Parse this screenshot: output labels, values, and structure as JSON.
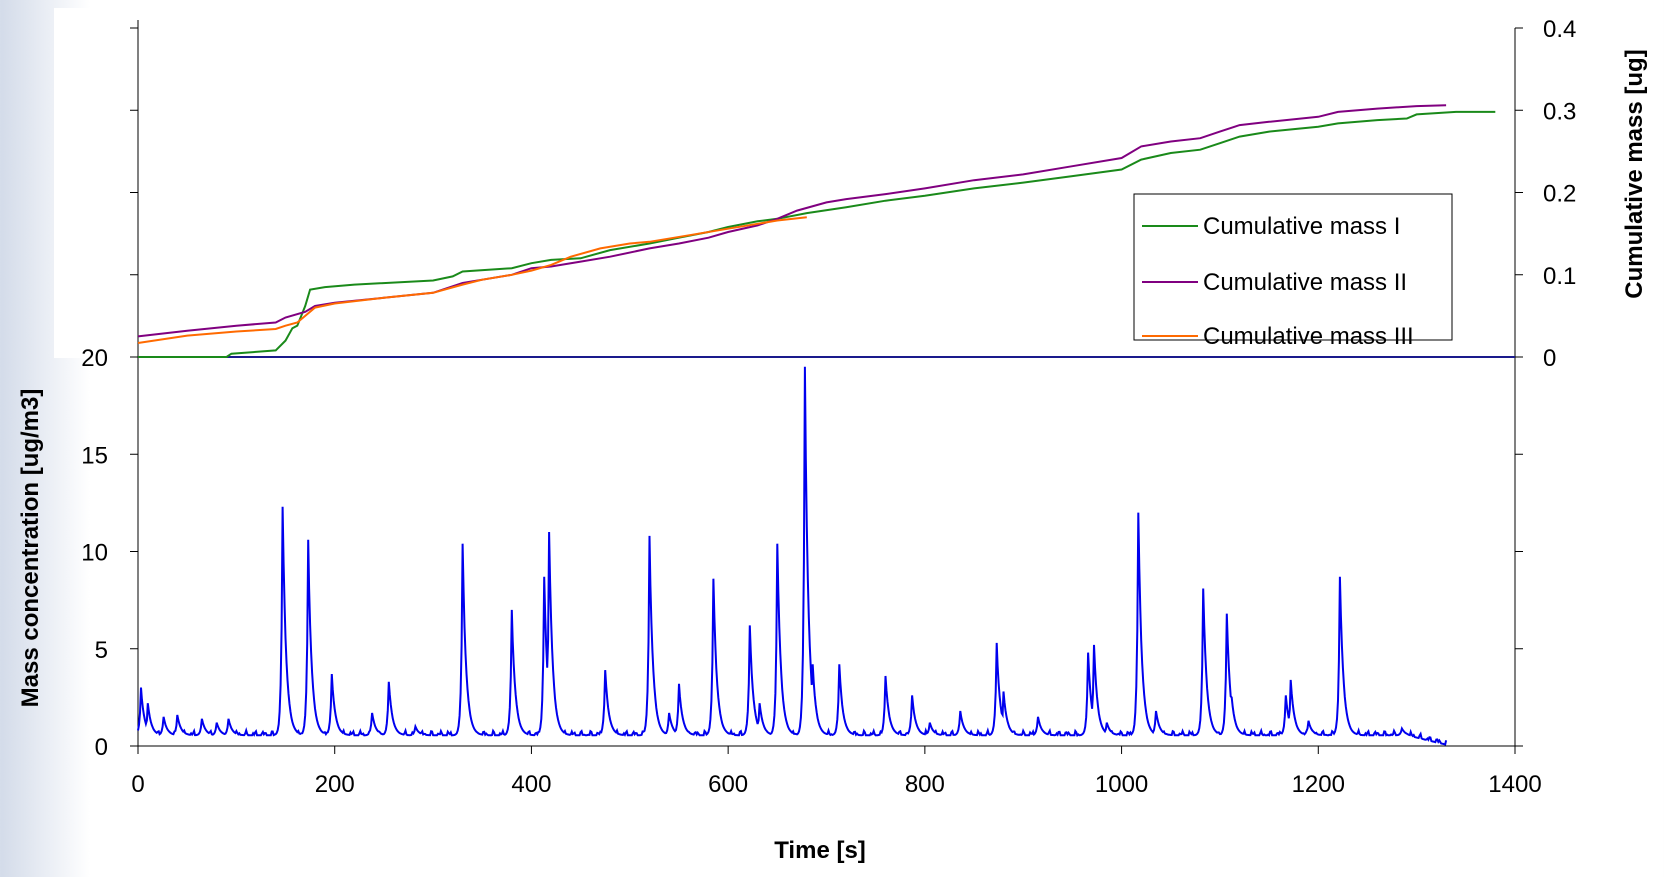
{
  "chart_data": {
    "type": "line",
    "x_axis": {
      "label": "Time [s]",
      "range": [
        0,
        1400
      ],
      "ticks": [
        0,
        200,
        400,
        600,
        800,
        1000,
        1200,
        1400
      ],
      "tick_labels": [
        "0",
        "200",
        "400",
        "600",
        "800",
        "1000",
        "1200",
        "1400"
      ]
    },
    "left_axis": {
      "label": "Mass concentration [ug/m3]",
      "range": [
        0,
        20
      ],
      "ticks": [
        0,
        5,
        10,
        15,
        20
      ],
      "tick_labels": [
        "0",
        "5",
        "10",
        "15",
        "20"
      ]
    },
    "right_axis": {
      "label": "Cumulative mass [ug]",
      "range": [
        0,
        0.4
      ],
      "ticks": [
        0,
        0.1,
        0.2,
        0.3,
        0.4
      ],
      "tick_labels": [
        "0",
        "0.1",
        "0.2",
        "0.3",
        "0.4"
      ]
    },
    "legend": {
      "position": "right, inside upper panel"
    },
    "grid": false,
    "series": [
      {
        "name": "Cumulative mass I",
        "axis": "right",
        "color": "#1a8a1a",
        "points": [
          [
            0,
            0
          ],
          [
            90,
            0
          ],
          [
            95,
            0.004
          ],
          [
            140,
            0.008
          ],
          [
            150,
            0.02
          ],
          [
            157,
            0.035
          ],
          [
            162,
            0.038
          ],
          [
            170,
            0.062
          ],
          [
            175,
            0.082
          ],
          [
            190,
            0.085
          ],
          [
            220,
            0.088
          ],
          [
            300,
            0.093
          ],
          [
            320,
            0.098
          ],
          [
            330,
            0.104
          ],
          [
            380,
            0.108
          ],
          [
            400,
            0.114
          ],
          [
            420,
            0.118
          ],
          [
            450,
            0.12
          ],
          [
            480,
            0.13
          ],
          [
            520,
            0.138
          ],
          [
            550,
            0.145
          ],
          [
            580,
            0.152
          ],
          [
            600,
            0.158
          ],
          [
            630,
            0.165
          ],
          [
            650,
            0.168
          ],
          [
            680,
            0.175
          ],
          [
            720,
            0.182
          ],
          [
            760,
            0.19
          ],
          [
            800,
            0.196
          ],
          [
            850,
            0.205
          ],
          [
            900,
            0.212
          ],
          [
            950,
            0.22
          ],
          [
            1000,
            0.228
          ],
          [
            1020,
            0.24
          ],
          [
            1050,
            0.248
          ],
          [
            1080,
            0.252
          ],
          [
            1100,
            0.26
          ],
          [
            1120,
            0.268
          ],
          [
            1150,
            0.274
          ],
          [
            1200,
            0.28
          ],
          [
            1220,
            0.284
          ],
          [
            1260,
            0.288
          ],
          [
            1290,
            0.29
          ],
          [
            1300,
            0.295
          ],
          [
            1340,
            0.298
          ],
          [
            1380,
            0.298
          ]
        ]
      },
      {
        "name": "Cumulative mass II",
        "axis": "right",
        "color": "#800080",
        "points": [
          [
            0,
            0.025
          ],
          [
            50,
            0.032
          ],
          [
            100,
            0.038
          ],
          [
            140,
            0.042
          ],
          [
            150,
            0.048
          ],
          [
            170,
            0.055
          ],
          [
            180,
            0.062
          ],
          [
            200,
            0.066
          ],
          [
            250,
            0.072
          ],
          [
            300,
            0.078
          ],
          [
            330,
            0.09
          ],
          [
            350,
            0.094
          ],
          [
            380,
            0.1
          ],
          [
            400,
            0.108
          ],
          [
            420,
            0.11
          ],
          [
            450,
            0.116
          ],
          [
            480,
            0.122
          ],
          [
            520,
            0.132
          ],
          [
            550,
            0.138
          ],
          [
            580,
            0.145
          ],
          [
            600,
            0.152
          ],
          [
            630,
            0.16
          ],
          [
            650,
            0.168
          ],
          [
            670,
            0.178
          ],
          [
            700,
            0.188
          ],
          [
            720,
            0.192
          ],
          [
            760,
            0.198
          ],
          [
            800,
            0.205
          ],
          [
            850,
            0.215
          ],
          [
            900,
            0.222
          ],
          [
            950,
            0.232
          ],
          [
            1000,
            0.242
          ],
          [
            1020,
            0.256
          ],
          [
            1050,
            0.262
          ],
          [
            1080,
            0.266
          ],
          [
            1100,
            0.274
          ],
          [
            1120,
            0.282
          ],
          [
            1150,
            0.286
          ],
          [
            1200,
            0.292
          ],
          [
            1220,
            0.298
          ],
          [
            1260,
            0.302
          ],
          [
            1300,
            0.305
          ],
          [
            1330,
            0.306
          ]
        ]
      },
      {
        "name": "Cumulative mass III",
        "axis": "right",
        "color": "#ff6a00",
        "points": [
          [
            0,
            0.017
          ],
          [
            50,
            0.026
          ],
          [
            100,
            0.031
          ],
          [
            140,
            0.034
          ],
          [
            150,
            0.038
          ],
          [
            162,
            0.042
          ],
          [
            170,
            0.05
          ],
          [
            180,
            0.06
          ],
          [
            200,
            0.065
          ],
          [
            250,
            0.072
          ],
          [
            300,
            0.078
          ],
          [
            330,
            0.088
          ],
          [
            350,
            0.094
          ],
          [
            380,
            0.1
          ],
          [
            400,
            0.105
          ],
          [
            420,
            0.112
          ],
          [
            440,
            0.122
          ],
          [
            470,
            0.132
          ],
          [
            500,
            0.138
          ],
          [
            520,
            0.14
          ],
          [
            560,
            0.148
          ],
          [
            600,
            0.156
          ],
          [
            630,
            0.162
          ],
          [
            650,
            0.166
          ],
          [
            680,
            0.17
          ]
        ]
      },
      {
        "name": "Mass concentration",
        "axis": "left",
        "color": "#0000ee",
        "baseline": 0.55,
        "peaks": [
          [
            3,
            3.0
          ],
          [
            10,
            2.2
          ],
          [
            26,
            1.5
          ],
          [
            40,
            1.6
          ],
          [
            65,
            1.4
          ],
          [
            80,
            1.2
          ],
          [
            92,
            1.4
          ],
          [
            147,
            12.3
          ],
          [
            173,
            10.6
          ],
          [
            197,
            3.7
          ],
          [
            238,
            1.7
          ],
          [
            255,
            3.3
          ],
          [
            282,
            1.0
          ],
          [
            330,
            10.4
          ],
          [
            380,
            7.0
          ],
          [
            413,
            8.7
          ],
          [
            418,
            11.0
          ],
          [
            475,
            3.9
          ],
          [
            520,
            10.8
          ],
          [
            540,
            1.7
          ],
          [
            550,
            3.2
          ],
          [
            585,
            8.6
          ],
          [
            622,
            6.2
          ],
          [
            632,
            2.2
          ],
          [
            650,
            10.4
          ],
          [
            678,
            19.5
          ],
          [
            686,
            4.2
          ],
          [
            713,
            4.2
          ],
          [
            760,
            3.6
          ],
          [
            787,
            2.6
          ],
          [
            805,
            1.2
          ],
          [
            836,
            1.8
          ],
          [
            873,
            5.3
          ],
          [
            880,
            2.8
          ],
          [
            915,
            1.5
          ],
          [
            966,
            4.8
          ],
          [
            972,
            5.2
          ],
          [
            985,
            1.2
          ],
          [
            1017,
            12.0
          ],
          [
            1035,
            1.8
          ],
          [
            1083,
            8.1
          ],
          [
            1107,
            6.8
          ],
          [
            1112,
            2.5
          ],
          [
            1167,
            2.6
          ],
          [
            1172,
            3.4
          ],
          [
            1190,
            1.3
          ],
          [
            1222,
            8.7
          ],
          [
            1285,
            0.9
          ]
        ]
      }
    ]
  }
}
